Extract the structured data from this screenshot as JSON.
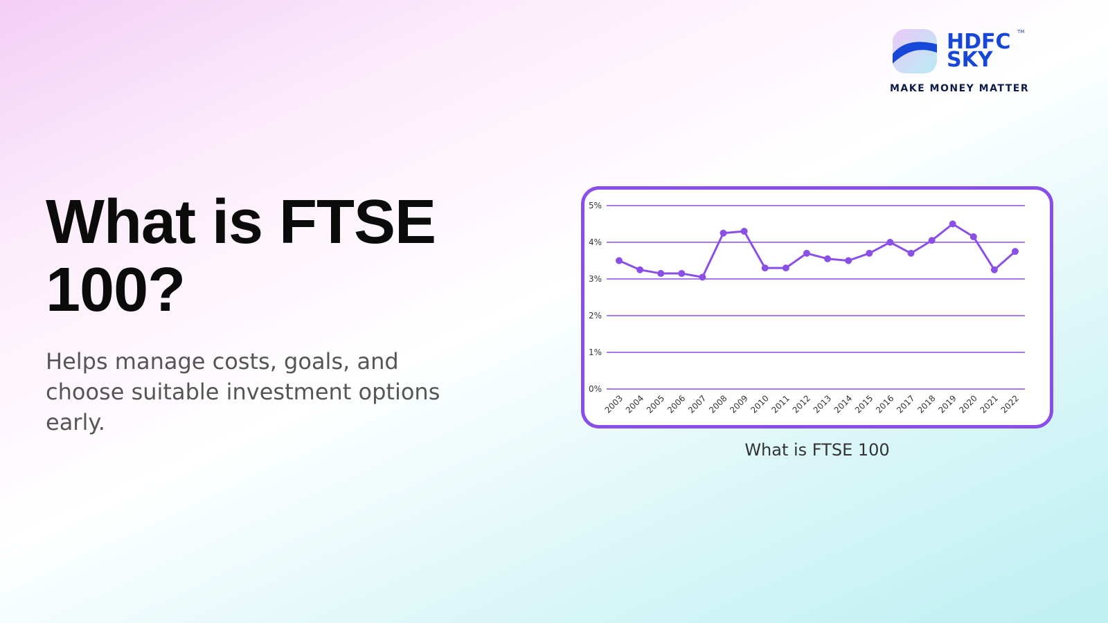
{
  "logo": {
    "name_line1": "HDFC",
    "name_line2": "SKY",
    "trademark": "TM",
    "tagline": "MAKE MONEY MATTER"
  },
  "heading": "What is FTSE 100?",
  "description": "Helps manage costs, goals, and choose suitable investment options early.",
  "chart_data": {
    "type": "line",
    "categories": [
      "2003",
      "2004",
      "2005",
      "2006",
      "2007",
      "2008",
      "2009",
      "2010",
      "2011",
      "2012",
      "2013",
      "2014",
      "2015",
      "2016",
      "2017",
      "2018",
      "2019",
      "2020",
      "2021",
      "2022"
    ],
    "values": [
      3.5,
      3.25,
      3.15,
      3.15,
      3.05,
      4.25,
      4.3,
      3.3,
      3.3,
      3.7,
      3.55,
      3.5,
      3.7,
      4.0,
      3.7,
      4.05,
      4.5,
      4.15,
      3.25,
      3.75
    ],
    "color": "#8a4fe6",
    "ylim": [
      0,
      5
    ],
    "yticks": [
      {
        "value": 0,
        "label": "0%"
      },
      {
        "value": 1,
        "label": "1%"
      },
      {
        "value": 2,
        "label": "2%"
      },
      {
        "value": 3,
        "label": "3%"
      },
      {
        "value": 4,
        "label": "4%"
      },
      {
        "value": 5,
        "label": "5%"
      }
    ],
    "grid": true
  },
  "caption": "What is FTSE 100"
}
